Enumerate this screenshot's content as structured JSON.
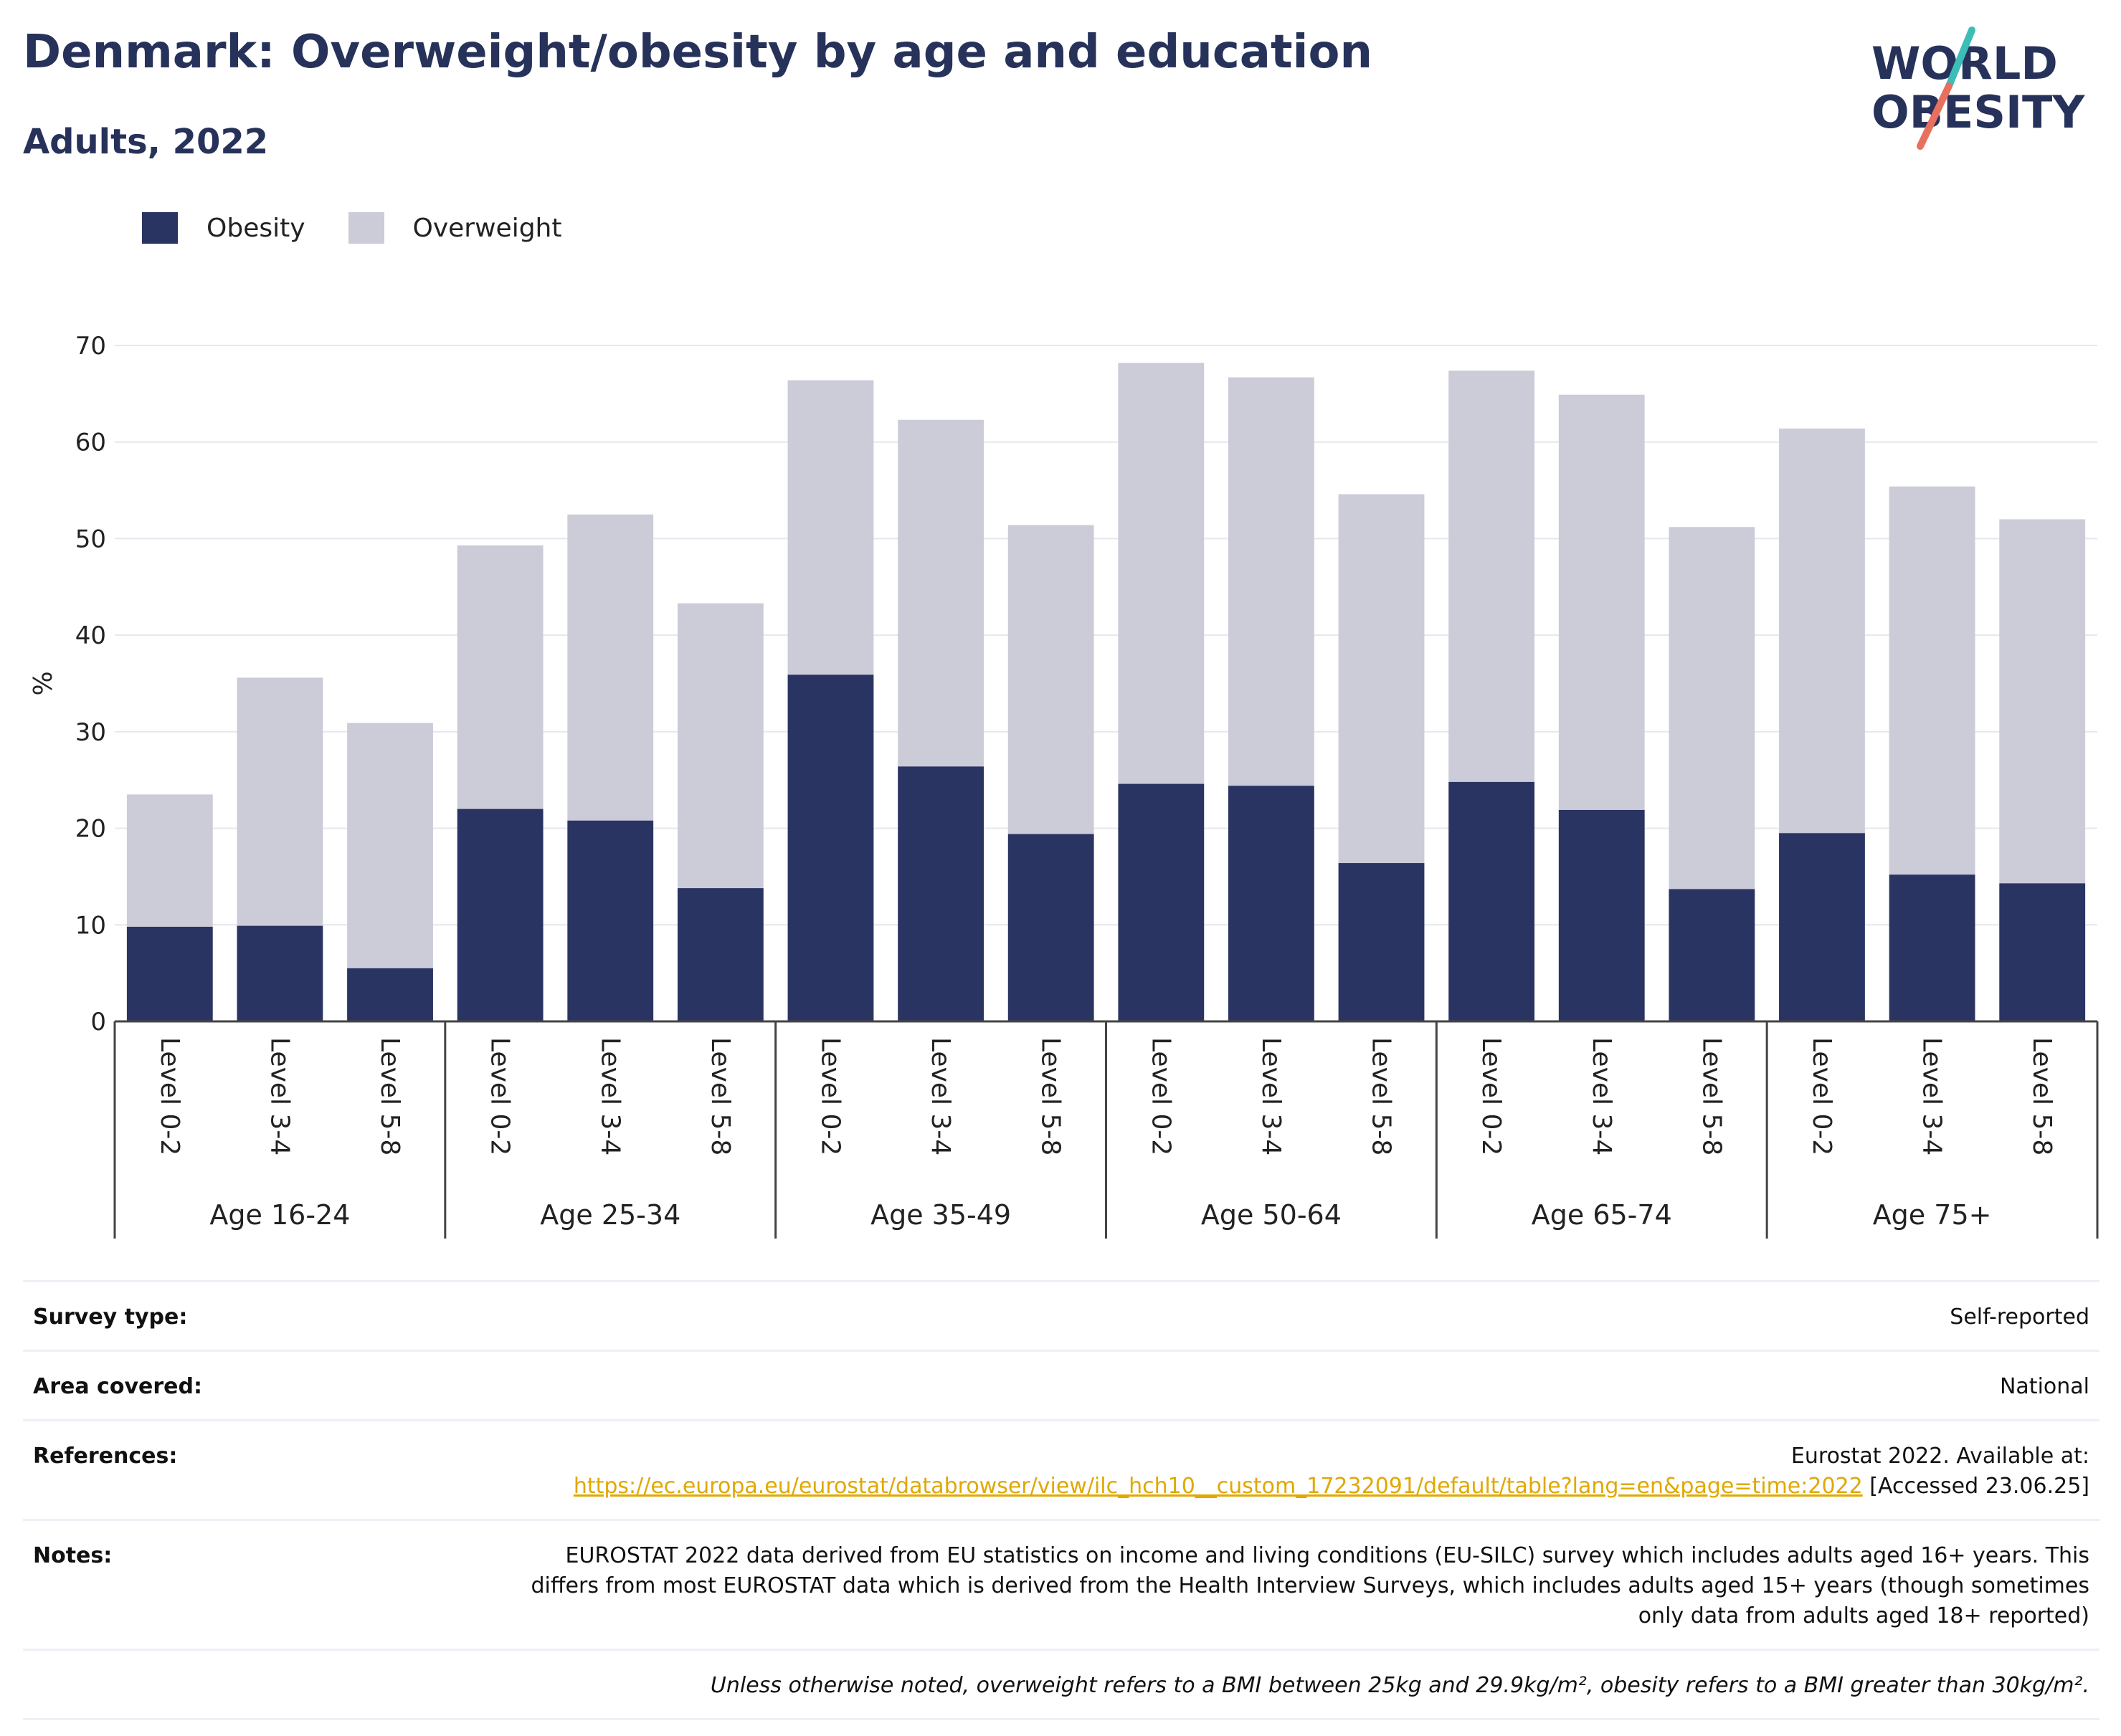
{
  "header": {
    "title": "Denmark: Overweight/obesity by age and education",
    "subtitle": "Adults, 2022"
  },
  "logo": {
    "line1": "WORLD",
    "line2": "OBESITY",
    "colors": {
      "text": "#27325a",
      "slash_top": "#3dbdb8",
      "slash_bottom": "#e8705e"
    }
  },
  "legend": [
    {
      "label": "Obesity",
      "color": "#293462"
    },
    {
      "label": "Overweight",
      "color": "#cbccd8"
    }
  ],
  "chart_data": {
    "type": "bar",
    "stacked": true,
    "ylabel": "%",
    "ylim": [
      0,
      70
    ],
    "yticks": [
      0,
      10,
      20,
      30,
      40,
      50,
      60,
      70
    ],
    "grid": true,
    "legend_position": "top-left",
    "groups": [
      "Age 16-24",
      "Age 25-34",
      "Age 35-49",
      "Age 50-64",
      "Age 65-74",
      "Age 75+"
    ],
    "levels": [
      "Level 0-2",
      "Level 3-4",
      "Level 5-8"
    ],
    "series": [
      {
        "name": "Obesity",
        "color": "#293462",
        "values": [
          9.8,
          9.9,
          5.5,
          22.0,
          20.8,
          13.8,
          35.9,
          26.4,
          19.4,
          24.6,
          24.4,
          16.4,
          24.8,
          21.9,
          13.7,
          19.5,
          15.2,
          14.3
        ]
      },
      {
        "name": "Overweight",
        "color": "#cbccd8",
        "values": [
          13.7,
          25.7,
          25.4,
          27.3,
          31.7,
          29.5,
          30.5,
          35.9,
          32.0,
          43.6,
          42.3,
          38.2,
          42.6,
          43.0,
          37.5,
          41.9,
          40.2,
          37.7
        ]
      }
    ]
  },
  "meta": {
    "survey_type_label": "Survey type:",
    "survey_type_value": "Self-reported",
    "area_label": "Area covered:",
    "area_value": "National",
    "references_label": "References:",
    "references_text_before": "Eurostat 2022. Available at:",
    "references_link": "https://ec.europa.eu/eurostat/databrowser/view/ilc_hch10__custom_17232091/default/table?lang=en&page=time:2022",
    "references_text_after": "[Accessed 23.06.25]",
    "notes_label": "Notes:",
    "notes_value": "EUROSTAT 2022 data derived from EU statistics on income and living conditions (EU-SILC) survey which includes adults aged 16+ years. This differs from most EUROSTAT data which is derived from the Health Interview Surveys, which includes adults aged 15+ years (though sometimes only data from adults aged 18+ reported)",
    "footnote": "Unless otherwise noted, overweight refers to a BMI between 25kg and 29.9kg/m², obesity refers to a BMI greater than 30kg/m²."
  }
}
